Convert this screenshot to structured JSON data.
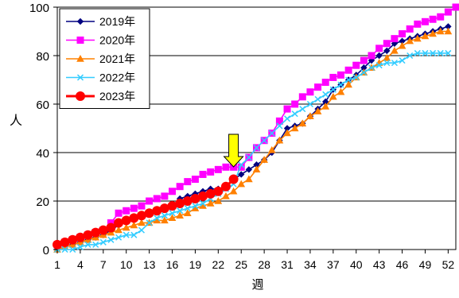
{
  "chart_data": {
    "type": "line",
    "xlabel": "週",
    "ylabel": "人",
    "xlim": [
      1,
      53
    ],
    "ylim": [
      0,
      100
    ],
    "y_ticks": [
      0,
      20,
      40,
      60,
      80,
      100
    ],
    "x_ticks": [
      1,
      4,
      7,
      10,
      13,
      16,
      19,
      22,
      25,
      28,
      31,
      34,
      37,
      40,
      43,
      46,
      49,
      52
    ],
    "grid": "horizontal",
    "legend_position": "top-left",
    "annotation": {
      "type": "arrow",
      "color": "#FFFF00",
      "x": 24
    },
    "series": [
      {
        "name": "2019年",
        "color": "#000080",
        "marker": "diamond",
        "x": [
          1,
          2,
          3,
          4,
          5,
          6,
          7,
          8,
          9,
          10,
          11,
          12,
          13,
          14,
          15,
          16,
          17,
          18,
          19,
          20,
          21,
          22,
          23,
          24,
          25,
          26,
          27,
          28,
          29,
          30,
          31,
          32,
          33,
          34,
          35,
          36,
          37,
          38,
          39,
          40,
          41,
          42,
          43,
          44,
          45,
          46,
          47,
          48,
          49,
          50,
          51,
          52
        ],
        "values": [
          0,
          1,
          2,
          3,
          4,
          5,
          6,
          8,
          10,
          12,
          13,
          14,
          15,
          16,
          17,
          18,
          21,
          22,
          23,
          24,
          25,
          25,
          26,
          29,
          31,
          33,
          35,
          37,
          40,
          45,
          50,
          51,
          52,
          55,
          58,
          61,
          66,
          68,
          70,
          72,
          75,
          78,
          80,
          82,
          85,
          86,
          87,
          88,
          89,
          90,
          91,
          92
        ]
      },
      {
        "name": "2020年",
        "color": "#FF00FF",
        "marker": "square",
        "x": [
          1,
          2,
          3,
          4,
          5,
          6,
          7,
          8,
          9,
          10,
          11,
          12,
          13,
          14,
          15,
          16,
          17,
          18,
          19,
          20,
          21,
          22,
          23,
          24,
          25,
          26,
          27,
          28,
          29,
          30,
          31,
          32,
          33,
          34,
          35,
          36,
          37,
          38,
          39,
          40,
          41,
          42,
          43,
          44,
          45,
          46,
          47,
          48,
          49,
          50,
          51,
          52,
          53
        ],
        "values": [
          2,
          3,
          4,
          5,
          6,
          7,
          8,
          11,
          15,
          16,
          17,
          18,
          20,
          21,
          22,
          24,
          26,
          28,
          29,
          31,
          32,
          33,
          34,
          34,
          34,
          38,
          42,
          45,
          48,
          53,
          58,
          60,
          63,
          65,
          67,
          69,
          71,
          72,
          74,
          76,
          78,
          80,
          83,
          85,
          87,
          89,
          91,
          93,
          94,
          95,
          96,
          98,
          100
        ]
      },
      {
        "name": "2021年",
        "color": "#FF8000",
        "marker": "triangle",
        "x": [
          1,
          2,
          3,
          4,
          5,
          6,
          7,
          8,
          9,
          10,
          11,
          12,
          13,
          14,
          15,
          16,
          17,
          18,
          19,
          20,
          21,
          22,
          23,
          24,
          25,
          26,
          27,
          28,
          29,
          30,
          31,
          32,
          33,
          34,
          35,
          36,
          37,
          38,
          39,
          40,
          41,
          42,
          43,
          44,
          45,
          46,
          47,
          48,
          49,
          50,
          51,
          52
        ],
        "values": [
          0,
          1,
          2,
          3,
          4,
          5,
          6,
          7,
          8,
          9,
          10,
          11,
          11,
          12,
          12,
          13,
          14,
          15,
          17,
          18,
          19,
          20,
          22,
          24,
          27,
          29,
          33,
          37,
          41,
          45,
          48,
          50,
          52,
          55,
          57,
          59,
          63,
          65,
          68,
          71,
          73,
          75,
          77,
          79,
          82,
          84,
          86,
          87,
          88,
          89,
          90,
          90
        ]
      },
      {
        "name": "2022年",
        "color": "#33CCFF",
        "marker": "x",
        "x": [
          1,
          2,
          3,
          4,
          5,
          6,
          7,
          8,
          9,
          10,
          11,
          12,
          13,
          14,
          15,
          16,
          17,
          18,
          19,
          20,
          21,
          22,
          23,
          24,
          25,
          26,
          27,
          28,
          29,
          30,
          31,
          32,
          33,
          34,
          35,
          36,
          37,
          38,
          39,
          40,
          41,
          42,
          43,
          44,
          45,
          46,
          47,
          48,
          49,
          50,
          51,
          52
        ],
        "values": [
          0,
          0,
          0,
          1,
          2,
          2,
          3,
          4,
          5,
          6,
          6,
          8,
          11,
          13,
          14,
          15,
          16,
          17,
          18,
          19,
          21,
          23,
          25,
          27,
          35,
          38,
          42,
          45,
          48,
          51,
          54,
          56,
          58,
          60,
          62,
          64,
          66,
          68,
          70,
          71,
          73,
          75,
          76,
          77,
          77,
          78,
          80,
          81,
          81,
          81,
          81,
          81
        ]
      },
      {
        "name": "2023年",
        "color": "#FF0000",
        "marker": "circle",
        "x": [
          1,
          2,
          3,
          4,
          5,
          6,
          7,
          8,
          9,
          10,
          11,
          12,
          13,
          14,
          15,
          16,
          17,
          18,
          19,
          20,
          21,
          22,
          23,
          24
        ],
        "values": [
          2,
          3,
          4,
          5,
          6,
          7,
          8,
          9,
          11,
          12,
          13,
          14,
          15,
          16,
          17,
          18,
          19,
          20,
          21,
          22,
          23,
          24,
          26,
          29
        ]
      }
    ]
  }
}
